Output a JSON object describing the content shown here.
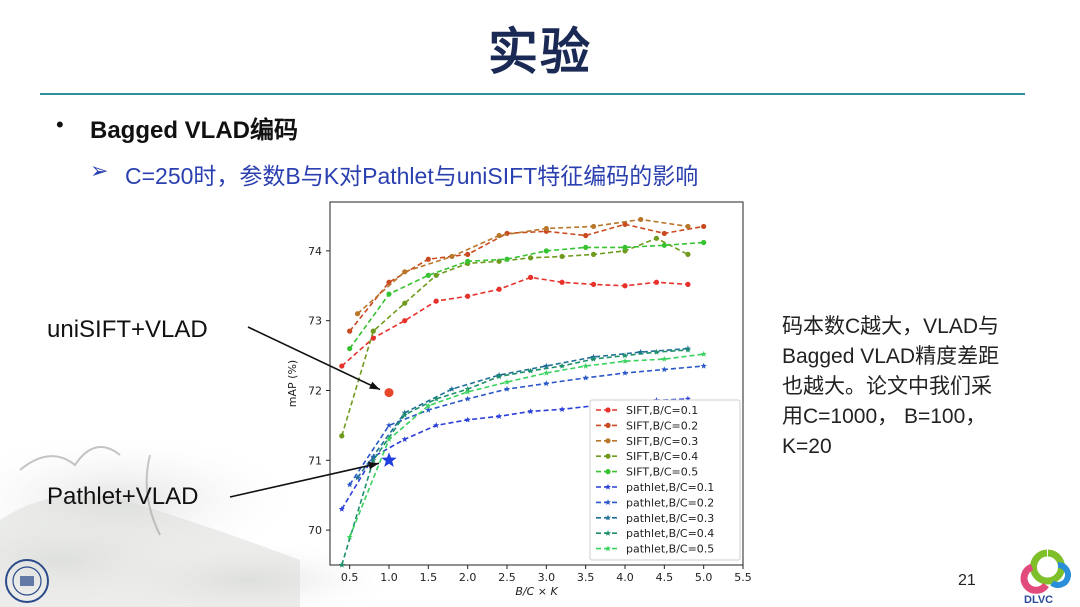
{
  "slide": {
    "title": "实验",
    "bullet": "Bagged VLAD编码",
    "sub_bullet": "C=250时，参数B与K对Pathlet与uniSIFT特征编码的影响",
    "label_unisift": "uniSIFT+VLAD",
    "label_pathlet": "Pathlet+VLAD",
    "note_lines": [
      "码本数C越大，VLAD与",
      "Bagged VLAD精度差距",
      "也越大。论文中我们采",
      "用C=1000，  B=100，",
      "K=20"
    ],
    "page_number": "21",
    "logo_text": "DLVC"
  },
  "chart_data": {
    "type": "line",
    "xlabel": "B/C × K",
    "ylabel": "mAP (%)",
    "xlim": [
      0.25,
      5.5
    ],
    "ylim": [
      69.5,
      74.7
    ],
    "xticks": [
      "0.5",
      "1.0",
      "1.5",
      "2.0",
      "2.5",
      "3.0",
      "3.5",
      "4.0",
      "4.5",
      "5.0",
      "5.5"
    ],
    "yticks": [
      "70",
      "71",
      "72",
      "73",
      "74"
    ],
    "legend_position": "lower-right",
    "series": [
      {
        "name": "SIFT,B/C=0.1",
        "marker": "circle",
        "color": "#e8312a",
        "x": [
          0.4,
          0.8,
          1.2,
          1.6,
          2.0,
          2.4,
          2.8,
          3.2,
          3.6,
          4.0,
          4.4,
          4.8
        ],
        "y": [
          72.35,
          72.75,
          73.0,
          73.28,
          73.35,
          73.45,
          73.62,
          73.55,
          73.52,
          73.5,
          73.55,
          73.52
        ]
      },
      {
        "name": "SIFT,B/C=0.2",
        "marker": "circle",
        "color": "#c94a1e",
        "x": [
          0.5,
          1.0,
          1.5,
          2.0,
          2.5,
          3.0,
          3.5,
          4.0,
          4.5,
          5.0
        ],
        "y": [
          72.85,
          73.55,
          73.88,
          73.95,
          74.25,
          74.28,
          74.22,
          74.38,
          74.25,
          74.35
        ]
      },
      {
        "name": "SIFT,B/C=0.3",
        "marker": "circle",
        "color": "#b8762a",
        "x": [
          0.6,
          1.2,
          1.8,
          2.4,
          3.0,
          3.6,
          4.2,
          4.8
        ],
        "y": [
          73.1,
          73.7,
          73.92,
          74.22,
          74.32,
          74.35,
          74.45,
          74.35
        ]
      },
      {
        "name": "SIFT,B/C=0.4",
        "marker": "circle",
        "color": "#6f9a1d",
        "x": [
          0.4,
          0.8,
          1.2,
          1.6,
          2.0,
          2.4,
          2.8,
          3.2,
          3.6,
          4.0,
          4.4,
          4.8
        ],
        "y": [
          71.35,
          72.85,
          73.25,
          73.65,
          73.82,
          73.85,
          73.9,
          73.92,
          73.95,
          74.0,
          74.18,
          73.95
        ]
      },
      {
        "name": "SIFT,B/C=0.5",
        "marker": "circle",
        "color": "#37c232",
        "x": [
          0.5,
          1.0,
          1.5,
          2.0,
          2.5,
          3.0,
          3.5,
          4.0,
          4.5,
          5.0
        ],
        "y": [
          72.6,
          73.38,
          73.65,
          73.85,
          73.88,
          74.0,
          74.05,
          74.05,
          74.08,
          74.12
        ]
      },
      {
        "name": "pathlet,B/C=0.1",
        "marker": "star",
        "color": "#2a3fd8",
        "x": [
          0.4,
          0.8,
          1.2,
          1.6,
          2.0,
          2.4,
          2.8,
          3.2,
          3.6,
          4.0,
          4.4,
          4.8
        ],
        "y": [
          70.3,
          71.05,
          71.3,
          71.5,
          71.58,
          71.63,
          71.7,
          71.73,
          71.78,
          71.82,
          71.86,
          71.88
        ]
      },
      {
        "name": "pathlet,B/C=0.2",
        "marker": "star",
        "color": "#2a58c8",
        "x": [
          0.5,
          1.0,
          1.5,
          2.0,
          2.5,
          3.0,
          3.5,
          4.0,
          4.5,
          5.0
        ],
        "y": [
          70.65,
          71.5,
          71.72,
          71.88,
          72.02,
          72.1,
          72.18,
          72.25,
          72.3,
          72.35
        ]
      },
      {
        "name": "pathlet,B/C=0.3",
        "marker": "star",
        "color": "#1f6f96",
        "x": [
          0.6,
          1.2,
          1.8,
          2.4,
          3.0,
          3.6,
          4.2,
          4.8
        ],
        "y": [
          70.75,
          71.68,
          72.02,
          72.22,
          72.35,
          72.48,
          72.55,
          72.6
        ]
      },
      {
        "name": "pathlet,B/C=0.4",
        "marker": "star",
        "color": "#1c8f6a",
        "x": [
          0.4,
          0.8,
          1.2,
          1.6,
          2.0,
          2.4,
          2.8,
          3.2,
          3.6,
          4.0,
          4.4,
          4.8
        ],
        "y": [
          69.5,
          71.0,
          71.65,
          71.88,
          72.02,
          72.2,
          72.28,
          72.35,
          72.45,
          72.5,
          72.55,
          72.58
        ]
      },
      {
        "name": "pathlet,B/C=0.5",
        "marker": "star",
        "color": "#3ad25e",
        "x": [
          0.5,
          1.0,
          1.5,
          2.0,
          2.5,
          3.0,
          3.5,
          4.0,
          4.5,
          5.0
        ],
        "y": [
          69.9,
          71.3,
          71.78,
          71.98,
          72.12,
          72.25,
          72.35,
          72.42,
          72.45,
          72.52
        ]
      }
    ],
    "highlight_points": [
      {
        "name": "uniSIFT+VLAD",
        "marker": "circle",
        "color": "#e8452a",
        "x": 1.0,
        "y": 71.97
      },
      {
        "name": "Pathlet+VLAD",
        "marker": "star",
        "color": "#1e3ee0",
        "x": 1.0,
        "y": 71.0
      }
    ]
  }
}
